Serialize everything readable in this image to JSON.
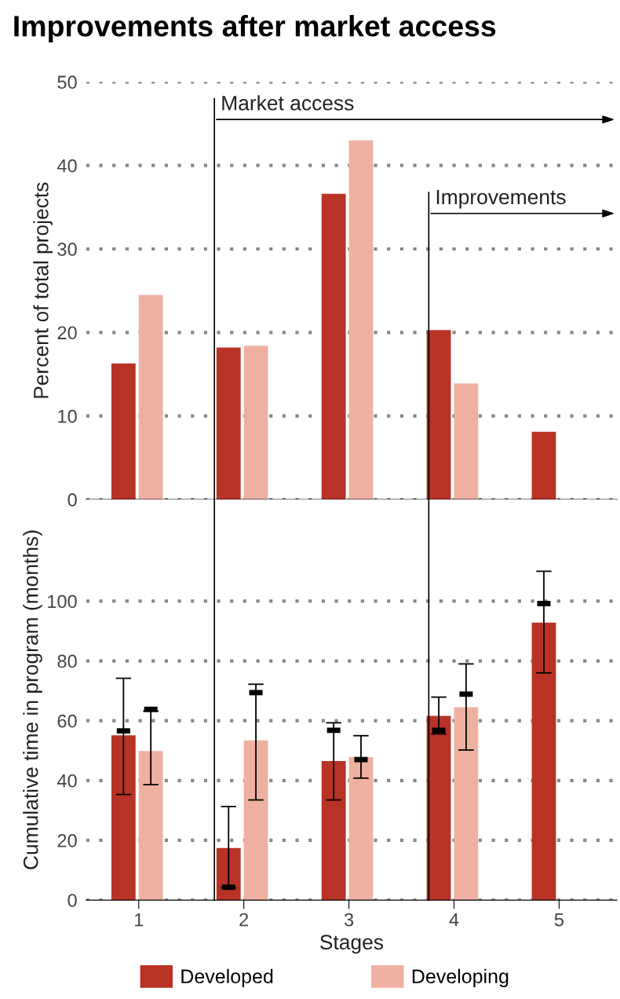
{
  "chart_data": [
    {
      "type": "bar",
      "title": "Improvements after market access",
      "ylabel": "Percent of total projects",
      "x": [
        1,
        2,
        3,
        4,
        5
      ],
      "xlim": [
        0.5,
        5.55
      ],
      "ylim": [
        0,
        50
      ],
      "yticks": [
        0,
        10,
        20,
        30,
        40,
        50
      ],
      "grid": "y",
      "tick_labels": "y",
      "series": [
        {
          "color": "#b83326",
          "values": [
            16.3,
            18.2,
            36.6,
            20.3,
            8.1
          ]
        },
        {
          "color": "#eeb1a1",
          "values": [
            24.5,
            18.4,
            43.0,
            13.9,
            null
          ]
        }
      ],
      "ref_lines": [
        {
          "axis": "x",
          "value": 1.72,
          "label": "Market access",
          "color": "#000000"
        },
        {
          "axis": "x",
          "value": 3.76,
          "label": "Improvements",
          "color": "#000000"
        }
      ]
    },
    {
      "type": "bar",
      "ylabel": "Cumulative time in program (months)",
      "xlabel": "Stages",
      "x": [
        1,
        2,
        3,
        4,
        5
      ],
      "xlim": [
        0.5,
        5.55
      ],
      "xticks": [
        1,
        2,
        3,
        4,
        5
      ],
      "ylim": [
        0,
        134
      ],
      "yticks": [
        0,
        20,
        40,
        60,
        80,
        100
      ],
      "grid": "y",
      "legend": "bottom",
      "series": [
        {
          "name": "Developed",
          "color": "#b83326",
          "values": [
            55.1,
            17.4,
            46.5,
            61.6,
            92.8
          ],
          "errors": [
            [
              35.3,
              74.2
            ],
            [
              4.1,
              31.3
            ],
            [
              33.5,
              59.3
            ],
            [
              55.6,
              67.9
            ],
            [
              76.0,
              110.0
            ]
          ]
        },
        {
          "name": "Developing",
          "color": "#eeb1a1",
          "values": [
            49.9,
            53.4,
            47.8,
            64.5,
            null
          ],
          "errors": [
            [
              38.6,
              63.2
            ],
            [
              33.5,
              72.2
            ],
            [
              40.8,
              55.0
            ],
            [
              50.2,
              79.0
            ],
            null
          ]
        },
        {
          "type": "scatter",
          "color": "#000000",
          "x": [
            0.855,
            1.855,
            2.855,
            3.855,
            4.855
          ],
          "values": [
            56.6,
            4.3,
            56.8,
            56.8,
            99.2
          ]
        },
        {
          "type": "scatter",
          "color": "#000000",
          "x": [
            1.115,
            2.115,
            3.115,
            4.115
          ],
          "values": [
            63.8,
            69.4,
            47.0,
            68.9
          ]
        }
      ],
      "ref_lines": [
        {
          "axis": "x",
          "value": 1.72,
          "color": "#000000"
        },
        {
          "axis": "x",
          "value": 3.76,
          "color": "#000000"
        }
      ]
    }
  ]
}
